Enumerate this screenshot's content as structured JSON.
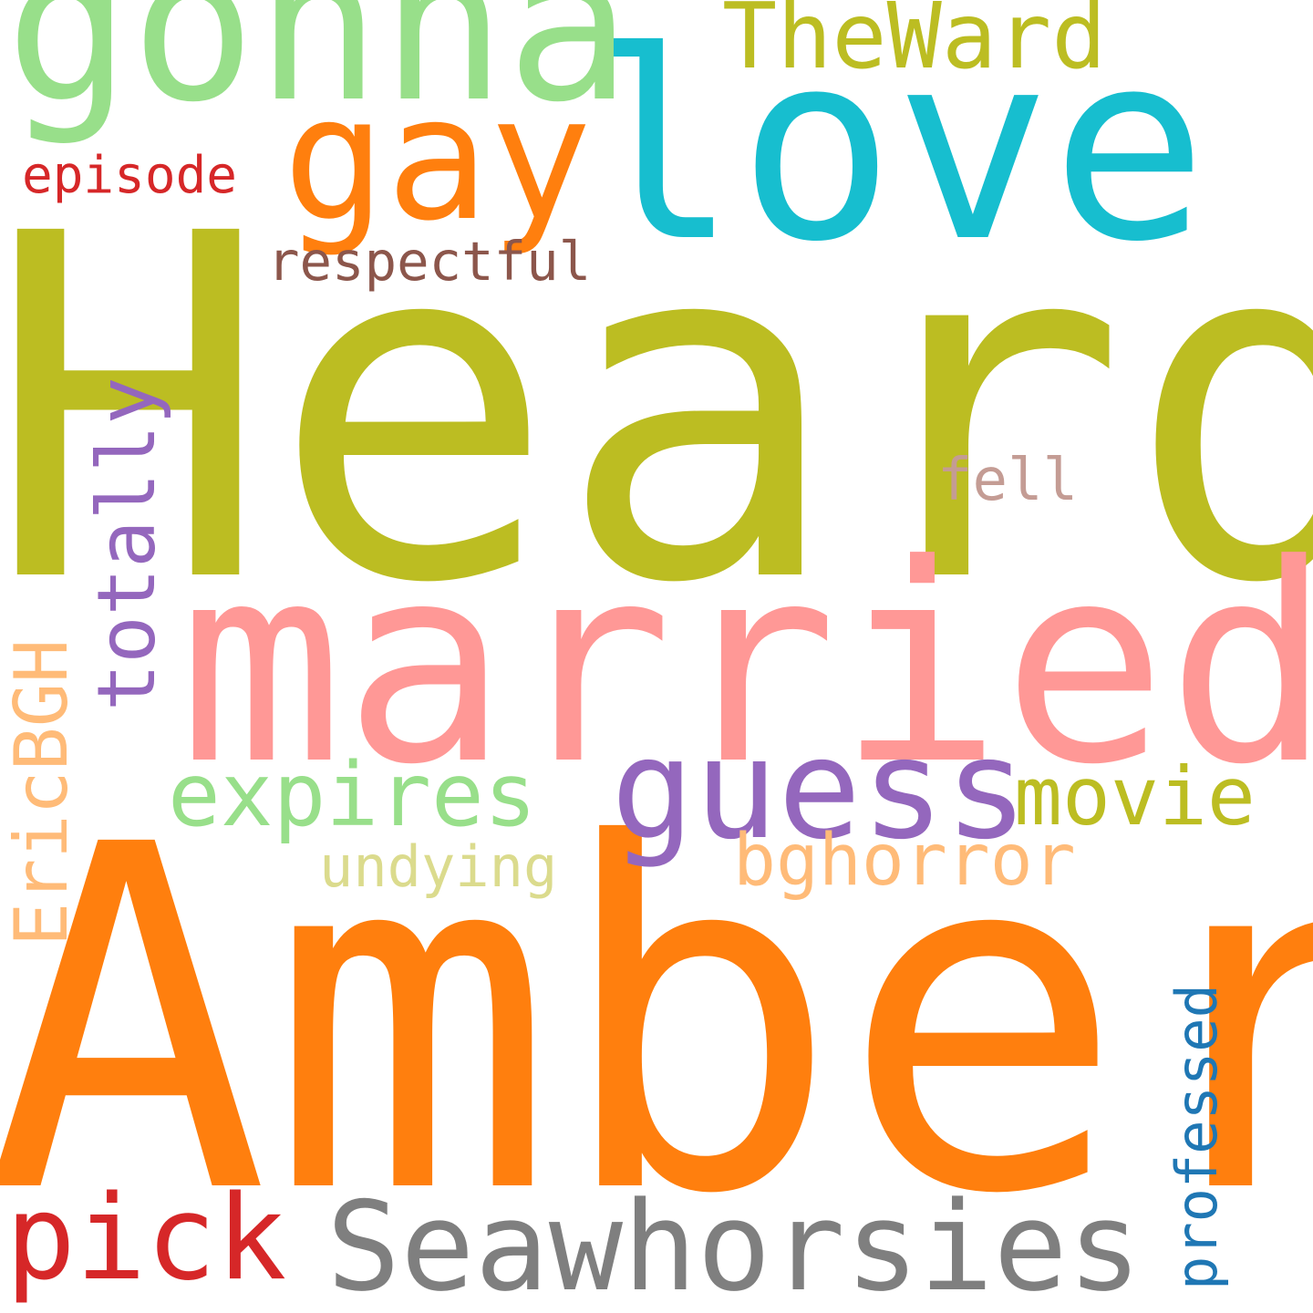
{
  "words": {
    "heard": {
      "text": "Heard",
      "color": "#bcbd22"
    },
    "amber": {
      "text": "Amber",
      "color": "#ff7f0e"
    },
    "married": {
      "text": "married",
      "color": "#ff9896"
    },
    "love": {
      "text": "love",
      "color": "#17becf"
    },
    "gonna": {
      "text": "gonna",
      "color": "#98df8a"
    },
    "gay": {
      "text": "gay",
      "color": "#ff7f0e"
    },
    "guess": {
      "text": "guess",
      "color": "#9467bd"
    },
    "seawhorsies": {
      "text": "Seawhorsies",
      "color": "#7f7f7f"
    },
    "pick": {
      "text": "pick",
      "color": "#d62728"
    },
    "theward": {
      "text": "TheWard",
      "color": "#bcbd22"
    },
    "expires": {
      "text": "expires",
      "color": "#98df8a"
    },
    "movie": {
      "text": "movie",
      "color": "#bcbd22"
    },
    "bghorror": {
      "text": "bghorror",
      "color": "#ffbb78"
    },
    "respectful": {
      "text": "respectful",
      "color": "#8c564b"
    },
    "episode": {
      "text": "episode",
      "color": "#d62728"
    },
    "fell": {
      "text": "fell",
      "color": "#c49c94"
    },
    "undying": {
      "text": "undying",
      "color": "#dbdb8d"
    },
    "totally": {
      "text": "totally",
      "color": "#9467bd"
    },
    "ericbgh": {
      "text": "EricBGH",
      "color": "#ffbb78"
    },
    "professed": {
      "text": "professed",
      "color": "#1f77b4"
    }
  }
}
